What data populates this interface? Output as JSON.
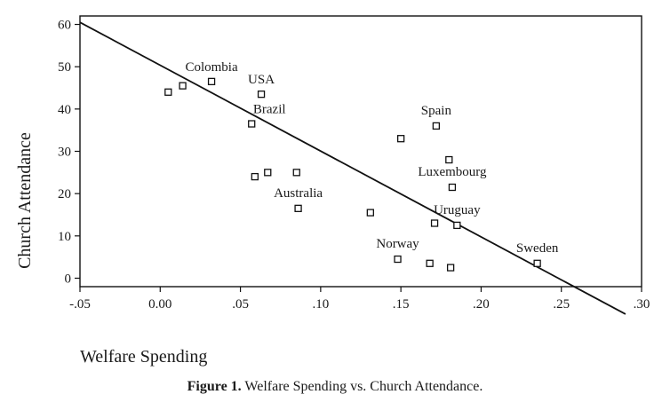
{
  "chart_data": {
    "type": "scatter",
    "xlabel": "Welfare Spending",
    "ylabel": "Church Attendance",
    "xlim": [
      -0.05,
      0.3
    ],
    "ylim": [
      -2,
      62
    ],
    "x_ticks": [
      -0.05,
      0.0,
      0.05,
      0.1,
      0.15,
      0.2,
      0.25,
      0.3
    ],
    "x_tick_labels": [
      "-.05",
      "0.00",
      ".05",
      ".10",
      ".15",
      ".20",
      ".25",
      ".30"
    ],
    "y_ticks": [
      0,
      10,
      20,
      30,
      40,
      50,
      60
    ],
    "y_tick_labels": [
      "0",
      "10",
      "20",
      "30",
      "40",
      "50",
      "60"
    ],
    "grid": false,
    "legend": "none",
    "marker": "open-square",
    "points": [
      {
        "x": 0.005,
        "y": 44,
        "label": ""
      },
      {
        "x": 0.014,
        "y": 45.5,
        "label": ""
      },
      {
        "x": 0.032,
        "y": 46.5,
        "label": "Colombia"
      },
      {
        "x": 0.063,
        "y": 43.5,
        "label": "USA"
      },
      {
        "x": 0.057,
        "y": 36.5,
        "label": "Brazil"
      },
      {
        "x": 0.059,
        "y": 24,
        "label": ""
      },
      {
        "x": 0.067,
        "y": 25,
        "label": ""
      },
      {
        "x": 0.085,
        "y": 25,
        "label": ""
      },
      {
        "x": 0.086,
        "y": 16.5,
        "label": "Australia"
      },
      {
        "x": 0.131,
        "y": 15.5,
        "label": ""
      },
      {
        "x": 0.15,
        "y": 33,
        "label": ""
      },
      {
        "x": 0.172,
        "y": 36,
        "label": "Spain"
      },
      {
        "x": 0.18,
        "y": 28,
        "label": ""
      },
      {
        "x": 0.182,
        "y": 21.5,
        "label": "Luxembourg"
      },
      {
        "x": 0.171,
        "y": 13,
        "label": ""
      },
      {
        "x": 0.185,
        "y": 12.5,
        "label": "Uruguay"
      },
      {
        "x": 0.148,
        "y": 4.5,
        "label": "Norway"
      },
      {
        "x": 0.168,
        "y": 3.5,
        "label": ""
      },
      {
        "x": 0.181,
        "y": 2.5,
        "label": ""
      },
      {
        "x": 0.235,
        "y": 3.5,
        "label": "Sweden"
      }
    ],
    "fit_line": {
      "x_start": -0.05,
      "y_start": 60.5,
      "x_end": 0.29,
      "y_end": -8.5
    }
  },
  "caption": {
    "figure_label": "Figure 1.",
    "text": "Welfare Spending vs. Church Attendance."
  }
}
